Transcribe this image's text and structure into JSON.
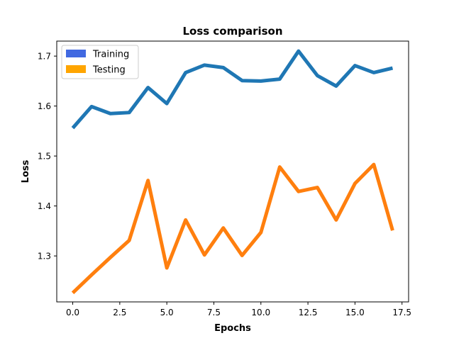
{
  "chart_data": {
    "type": "line",
    "title": "Loss comparison",
    "xlabel": "Epochs",
    "ylabel": "Loss",
    "xlim": [
      -0.85,
      17.85
    ],
    "ylim": [
      1.208,
      1.73
    ],
    "x_ticks": [
      0.0,
      2.5,
      5.0,
      7.5,
      10.0,
      12.5,
      15.0,
      17.5
    ],
    "x_tick_labels": [
      "0.0",
      "2.5",
      "5.0",
      "7.5",
      "10.0",
      "12.5",
      "15.0",
      "17.5"
    ],
    "y_ticks": [
      1.3,
      1.4,
      1.5,
      1.6,
      1.7
    ],
    "y_tick_labels": [
      "1.3",
      "1.4",
      "1.5",
      "1.6",
      "1.7"
    ],
    "grid": false,
    "legend_position": "top-left",
    "x": [
      0,
      1,
      2,
      3,
      4,
      5,
      6,
      7,
      8,
      9,
      10,
      11,
      12,
      13,
      14,
      15,
      16,
      17
    ],
    "series": [
      {
        "name": "Training",
        "line_color": "#1f77b4",
        "legend_color": "#4169e1",
        "values": [
          1.556,
          1.599,
          1.585,
          1.587,
          1.637,
          1.605,
          1.667,
          1.682,
          1.677,
          1.651,
          1.65,
          1.654,
          1.71,
          1.661,
          1.64,
          1.681,
          1.667,
          1.676
        ]
      },
      {
        "name": "Testing",
        "line_color": "#ff7f0e",
        "legend_color": "#ffa500",
        "values": [
          1.226,
          1.262,
          1.297,
          1.331,
          1.451,
          1.276,
          1.372,
          1.302,
          1.356,
          1.301,
          1.347,
          1.478,
          1.429,
          1.437,
          1.372,
          1.445,
          1.483,
          1.351
        ]
      }
    ]
  }
}
